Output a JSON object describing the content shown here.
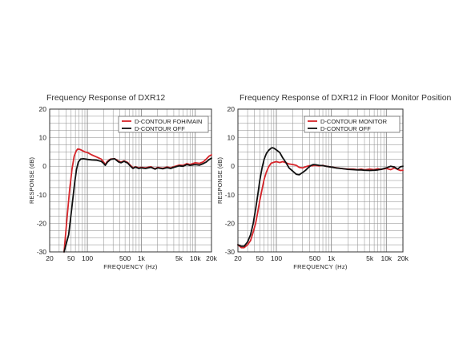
{
  "colors": {
    "red": "#d7262b",
    "black": "#111111",
    "grid": "#8a8a8a"
  },
  "chart_data": [
    {
      "type": "line",
      "title": "Frequency Response of DXR12",
      "xlabel": "FREQUENCY (Hz)",
      "ylabel": "RESPONSE (dB)",
      "xscale": "log",
      "xlim": [
        20,
        20000
      ],
      "ylim": [
        -30,
        20
      ],
      "xticks": [
        {
          "v": 20,
          "l": "20"
        },
        {
          "v": 50,
          "l": "50"
        },
        {
          "v": 100,
          "l": "100"
        },
        {
          "v": 500,
          "l": "500"
        },
        {
          "v": 1000,
          "l": "1k"
        },
        {
          "v": 5000,
          "l": "5k"
        },
        {
          "v": 10000,
          "l": "10k"
        },
        {
          "v": 20000,
          "l": "20k"
        }
      ],
      "yticks": [
        20,
        10,
        0,
        -10,
        -20,
        -30
      ],
      "legend_position": "top-right",
      "series": [
        {
          "name": "D-CONTOUR FOH/MAIN",
          "color": "red",
          "points": [
            [
              37,
              -30
            ],
            [
              42,
              -18
            ],
            [
              47,
              -8
            ],
            [
              52,
              -1
            ],
            [
              57,
              3.5
            ],
            [
              62,
              5.3
            ],
            [
              66,
              6.0
            ],
            [
              72,
              5.9
            ],
            [
              80,
              5.5
            ],
            [
              90,
              5.0
            ],
            [
              100,
              4.8
            ],
            [
              120,
              4.0
            ],
            [
              150,
              3.2
            ],
            [
              180,
              2.5
            ],
            [
              200,
              1.5
            ],
            [
              215,
              0.6
            ],
            [
              235,
              1.7
            ],
            [
              270,
              2.5
            ],
            [
              320,
              2.6
            ],
            [
              380,
              1.8
            ],
            [
              420,
              1.4
            ],
            [
              480,
              1.9
            ],
            [
              560,
              1.3
            ],
            [
              630,
              0.3
            ],
            [
              700,
              -0.6
            ],
            [
              780,
              -0.2
            ],
            [
              900,
              -0.6
            ],
            [
              1000,
              -0.4
            ],
            [
              1200,
              -0.6
            ],
            [
              1500,
              -0.2
            ],
            [
              1800,
              -0.9
            ],
            [
              2000,
              -0.4
            ],
            [
              2500,
              -0.7
            ],
            [
              3000,
              -0.3
            ],
            [
              3500,
              -0.6
            ],
            [
              4000,
              -0.2
            ],
            [
              5000,
              0.4
            ],
            [
              6000,
              0.3
            ],
            [
              7000,
              0.9
            ],
            [
              8000,
              0.6
            ],
            [
              10000,
              1.2
            ],
            [
              12000,
              1.0
            ],
            [
              14000,
              1.5
            ],
            [
              16000,
              2.5
            ],
            [
              18000,
              3.5
            ],
            [
              20000,
              4.0
            ]
          ]
        },
        {
          "name": "D-CONTOUR OFF",
          "color": "black",
          "points": [
            [
              37,
              -30
            ],
            [
              45,
              -24
            ],
            [
              52,
              -14
            ],
            [
              58,
              -6
            ],
            [
              63,
              -1
            ],
            [
              68,
              1.5
            ],
            [
              75,
              2.5
            ],
            [
              85,
              2.6
            ],
            [
              100,
              2.4
            ],
            [
              120,
              2.2
            ],
            [
              150,
              2.1
            ],
            [
              180,
              1.7
            ],
            [
              200,
              1.0
            ],
            [
              215,
              0.3
            ],
            [
              235,
              1.4
            ],
            [
              270,
              2.4
            ],
            [
              320,
              2.6
            ],
            [
              380,
              1.5
            ],
            [
              420,
              1.2
            ],
            [
              480,
              1.7
            ],
            [
              560,
              1.1
            ],
            [
              630,
              0.0
            ],
            [
              700,
              -0.8
            ],
            [
              780,
              -0.3
            ],
            [
              900,
              -0.8
            ],
            [
              1000,
              -0.6
            ],
            [
              1200,
              -0.8
            ],
            [
              1500,
              -0.4
            ],
            [
              1800,
              -1.0
            ],
            [
              2000,
              -0.6
            ],
            [
              2500,
              -0.9
            ],
            [
              3000,
              -0.5
            ],
            [
              3500,
              -0.8
            ],
            [
              4000,
              -0.4
            ],
            [
              5000,
              0.1
            ],
            [
              6000,
              0.0
            ],
            [
              7000,
              0.6
            ],
            [
              8000,
              0.3
            ],
            [
              10000,
              0.6
            ],
            [
              12000,
              0.4
            ],
            [
              14000,
              0.9
            ],
            [
              16000,
              1.5
            ],
            [
              18000,
              2.3
            ],
            [
              20000,
              2.8
            ]
          ]
        }
      ]
    },
    {
      "type": "line",
      "title": "Frequency Response of DXR12 in Floor Monitor Position",
      "xlabel": "FREQUENCY (Hz)",
      "ylabel": "RESPONSE (dB)",
      "xscale": "log",
      "xlim": [
        20,
        20000
      ],
      "ylim": [
        -30,
        20
      ],
      "xticks": [
        {
          "v": 20,
          "l": "20"
        },
        {
          "v": 50,
          "l": "50"
        },
        {
          "v": 100,
          "l": "100"
        },
        {
          "v": 500,
          "l": "500"
        },
        {
          "v": 1000,
          "l": "1k"
        },
        {
          "v": 5000,
          "l": "5k"
        },
        {
          "v": 10000,
          "l": "10k"
        },
        {
          "v": 20000,
          "l": "20k"
        }
      ],
      "yticks": [
        20,
        10,
        0,
        -10,
        -20,
        -30
      ],
      "legend_position": "top-right",
      "series": [
        {
          "name": "D-CONTOUR MONITOR",
          "color": "red",
          "points": [
            [
              20,
              -27.5
            ],
            [
              23,
              -28.5
            ],
            [
              26,
              -28.5
            ],
            [
              30,
              -27.5
            ],
            [
              34,
              -26
            ],
            [
              38,
              -23
            ],
            [
              42,
              -20
            ],
            [
              46,
              -16
            ],
            [
              50,
              -12
            ],
            [
              55,
              -8
            ],
            [
              60,
              -4.5
            ],
            [
              66,
              -2
            ],
            [
              72,
              -0.3
            ],
            [
              80,
              1.0
            ],
            [
              90,
              1.4
            ],
            [
              100,
              1.6
            ],
            [
              115,
              1.3
            ],
            [
              130,
              1.6
            ],
            [
              150,
              1.2
            ],
            [
              170,
              0.8
            ],
            [
              200,
              0.6
            ],
            [
              230,
              0.3
            ],
            [
              260,
              -0.4
            ],
            [
              300,
              -0.6
            ],
            [
              340,
              -0.2
            ],
            [
              400,
              0.2
            ],
            [
              450,
              0.1
            ],
            [
              500,
              0.3
            ],
            [
              600,
              0.1
            ],
            [
              700,
              0.3
            ],
            [
              800,
              0.0
            ],
            [
              1000,
              -0.3
            ],
            [
              1200,
              -0.5
            ],
            [
              1500,
              -0.8
            ],
            [
              2000,
              -1.0
            ],
            [
              2500,
              -1.0
            ],
            [
              3000,
              -1.2
            ],
            [
              3500,
              -1.0
            ],
            [
              4000,
              -1.3
            ],
            [
              5000,
              -1.0
            ],
            [
              6000,
              -1.2
            ],
            [
              7000,
              -0.9
            ],
            [
              8000,
              -1.1
            ],
            [
              10000,
              -0.8
            ],
            [
              12000,
              -1.2
            ],
            [
              14000,
              -0.6
            ],
            [
              16000,
              -1.1
            ],
            [
              18000,
              -1.5
            ],
            [
              20000,
              -1.4
            ]
          ]
        },
        {
          "name": "D-CONTOUR OFF",
          "color": "black",
          "points": [
            [
              20,
              -27.5
            ],
            [
              23,
              -28
            ],
            [
              26,
              -28
            ],
            [
              30,
              -26.5
            ],
            [
              34,
              -24
            ],
            [
              38,
              -20
            ],
            [
              42,
              -15
            ],
            [
              46,
              -10
            ],
            [
              50,
              -5
            ],
            [
              55,
              -0.5
            ],
            [
              60,
              2.5
            ],
            [
              66,
              4.5
            ],
            [
              72,
              5.5
            ],
            [
              80,
              6.3
            ],
            [
              85,
              6.5
            ],
            [
              90,
              6.3
            ],
            [
              100,
              5.7
            ],
            [
              115,
              4.8
            ],
            [
              130,
              3.0
            ],
            [
              150,
              1.2
            ],
            [
              170,
              -0.6
            ],
            [
              200,
              -1.8
            ],
            [
              230,
              -2.8
            ],
            [
              260,
              -3.0
            ],
            [
              300,
              -2.2
            ],
            [
              340,
              -1.4
            ],
            [
              380,
              -0.5
            ],
            [
              420,
              0.2
            ],
            [
              470,
              0.6
            ],
            [
              520,
              0.5
            ],
            [
              600,
              0.3
            ],
            [
              700,
              0.2
            ],
            [
              800,
              0.0
            ],
            [
              1000,
              -0.3
            ],
            [
              1200,
              -0.6
            ],
            [
              1500,
              -0.8
            ],
            [
              2000,
              -1.1
            ],
            [
              2500,
              -1.2
            ],
            [
              3000,
              -1.3
            ],
            [
              3500,
              -1.3
            ],
            [
              4000,
              -1.4
            ],
            [
              5000,
              -1.5
            ],
            [
              6000,
              -1.4
            ],
            [
              7000,
              -1.3
            ],
            [
              8000,
              -1.1
            ],
            [
              10000,
              -0.6
            ],
            [
              12000,
              0.0
            ],
            [
              14000,
              -0.3
            ],
            [
              16000,
              -1.0
            ],
            [
              18000,
              -0.2
            ],
            [
              20000,
              0.0
            ]
          ]
        }
      ]
    }
  ]
}
